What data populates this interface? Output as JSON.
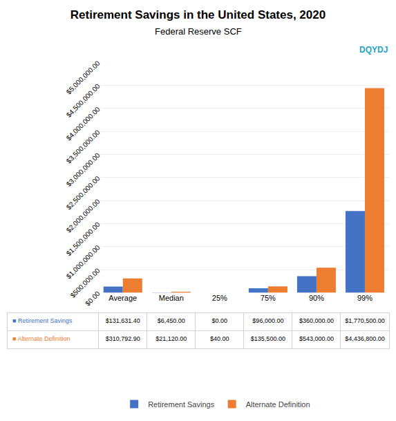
{
  "chart_data": {
    "type": "bar",
    "title": "Retirement Savings in the United States, 2020",
    "subtitle": "Federal Reserve SCF",
    "categories": [
      "Average",
      "Median",
      "25%",
      "75%",
      "90%",
      "99%"
    ],
    "series": [
      {
        "name": "Retirement Savings",
        "color": "#4472C4",
        "values": [
          131631.4,
          6450.0,
          0.0,
          96000.0,
          360000.0,
          1770500.0
        ],
        "value_labels": [
          "$131,631.40",
          "$6,450.00",
          "$0.00",
          "$96,000.00",
          "$360,000.00",
          "$1,770,500.00"
        ]
      },
      {
        "name": "Alternate Definition",
        "color": "#ED7D31",
        "values": [
          310792.9,
          21120.0,
          40.0,
          135500.0,
          543000.0,
          4436800.0
        ],
        "value_labels": [
          "$310,792.90",
          "$21,120.00",
          "$40.00",
          "$135,500.00",
          "$543,000.00",
          "$4,436,800.00"
        ]
      }
    ],
    "table_row_labels": [
      "■ Retirement Savings",
      "■ Alternate Definition"
    ],
    "annotations": [
      {
        "text": "DQYDJ",
        "color": "#1BA3C6"
      }
    ],
    "ylim": [
      0,
      5000000
    ],
    "yticks": [
      {
        "value": 0,
        "label": "$0.00"
      },
      {
        "value": 500000,
        "label": "$500,000.00"
      },
      {
        "value": 1000000,
        "label": "$1,000,000.00"
      },
      {
        "value": 1500000,
        "label": "$1,500,000.00"
      },
      {
        "value": 2000000,
        "label": "$2,000,000.00"
      },
      {
        "value": 2500000,
        "label": "$2,500,000.00"
      },
      {
        "value": 3000000,
        "label": "$3,000,000.00"
      },
      {
        "value": 3500000,
        "label": "$3,500,000.00"
      },
      {
        "value": 4000000,
        "label": "$4,000,000.00"
      },
      {
        "value": 4500000,
        "label": "$4,500,000.00"
      },
      {
        "value": 5000000,
        "label": "$5,000,000.00"
      }
    ],
    "grid": true,
    "legend": "bottom",
    "data_labels": false
  }
}
